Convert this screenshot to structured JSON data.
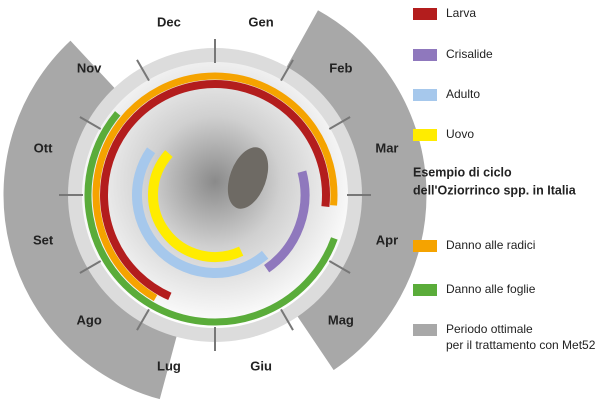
{
  "months": [
    "Gen",
    "Feb",
    "Mar",
    "Apr",
    "Mag",
    "Giu",
    "Lug",
    "Ago",
    "Set",
    "Ott",
    "Nov",
    "Dec"
  ],
  "legend": {
    "stages": [
      "Larva",
      "Crisalide",
      "Adulto",
      "Uovo"
    ],
    "title": [
      "Esempio di ciclo",
      "dell'Oziorrinco spp. in Italia"
    ],
    "damage": [
      "Danno alle radici",
      "Danno alle foglie"
    ],
    "period": [
      "Periodo ottimale",
      "per il trattamento con Met52"
    ]
  }
}
